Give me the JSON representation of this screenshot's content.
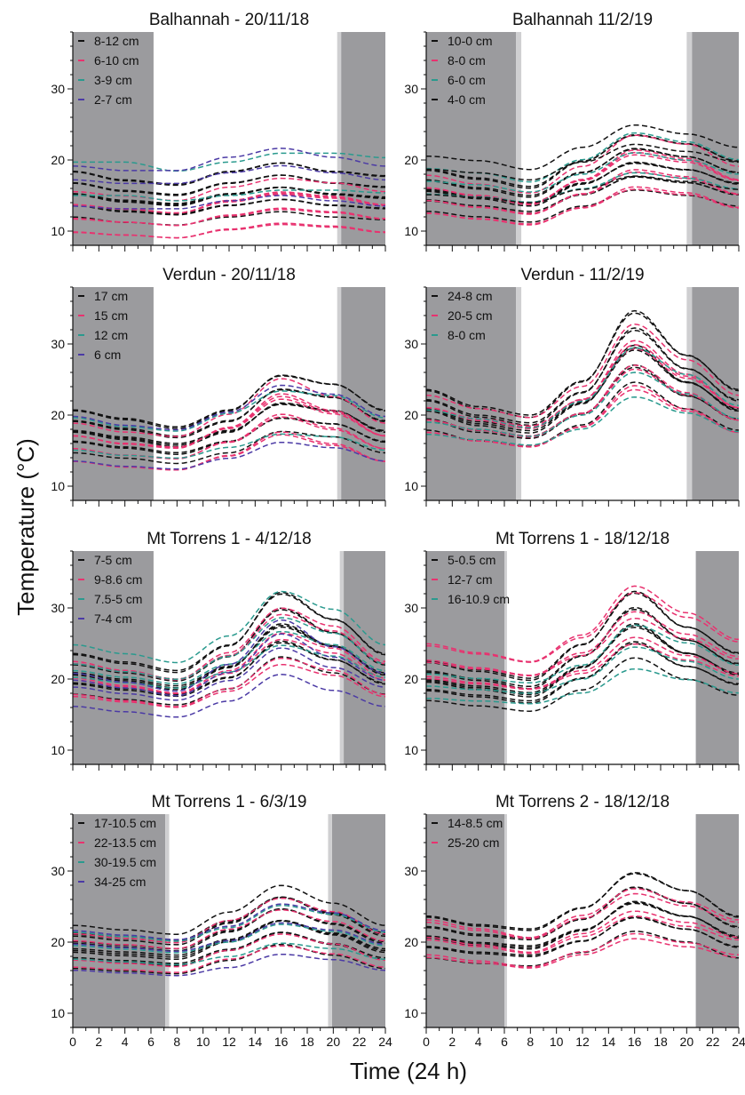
{
  "figure": {
    "ylabel": "Temperature (°C)",
    "xlabel": "Time (24 h)",
    "colors": {
      "night": "#9b9b9e",
      "twilight": "#cfcfd1",
      "black": "#111111",
      "pink": "#e8326f",
      "teal": "#2a9a8e",
      "purple": "#4b3aa5"
    }
  },
  "chart_data": [
    {
      "type": "line",
      "title": "Balhannah - 20/11/18",
      "xlim": [
        0,
        24
      ],
      "ylim": [
        8,
        38
      ],
      "yticks": [
        10,
        20,
        30
      ],
      "xticks": [
        0,
        2,
        4,
        6,
        8,
        10,
        12,
        14,
        16,
        18,
        20,
        22,
        24
      ],
      "night": [
        [
          0,
          6.2
        ],
        [
          20.6,
          24
        ]
      ],
      "twilight": [
        [
          20.3,
          20.6
        ]
      ],
      "legend": [
        "8-12 cm",
        "6-10 cm",
        "3-9 cm",
        "2-7 cm"
      ],
      "series": [
        {
          "name": "8-12 cm",
          "color": "black",
          "x": [
            0,
            4,
            8,
            12,
            16,
            20,
            24
          ],
          "y": [
            15.5,
            14.5,
            14,
            15.5,
            16.5,
            15.5,
            15
          ],
          "lines": 10
        },
        {
          "name": "6-10 cm",
          "color": "pink",
          "x": [
            0,
            4,
            8,
            12,
            16,
            20,
            24
          ],
          "y": [
            12.5,
            12,
            11.5,
            13,
            14,
            13.5,
            12.5
          ],
          "lines": 8
        },
        {
          "name": "3-9 cm",
          "color": "teal",
          "x": [
            0,
            4,
            8,
            12,
            16,
            20,
            24
          ],
          "y": [
            17,
            17,
            16,
            17,
            18,
            18,
            17.5
          ],
          "lines": 2
        },
        {
          "name": "2-7 cm",
          "color": "purple",
          "x": [
            0,
            4,
            8,
            12,
            16,
            20,
            24
          ],
          "y": [
            16.5,
            16,
            16,
            17.5,
            18.5,
            17.5,
            16.5
          ],
          "lines": 3
        }
      ]
    },
    {
      "type": "line",
      "title": "Balhannah 11/2/19",
      "xlim": [
        0,
        24
      ],
      "ylim": [
        8,
        38
      ],
      "yticks": [
        10,
        20,
        30
      ],
      "xticks": [
        0,
        2,
        4,
        6,
        8,
        10,
        12,
        14,
        16,
        18,
        20,
        22,
        24
      ],
      "night": [
        [
          0,
          6.9
        ],
        [
          20.4,
          24
        ]
      ],
      "twilight": [
        [
          6.9,
          7.3
        ],
        [
          20.0,
          20.4
        ]
      ],
      "legend": [
        "10-0 cm",
        "8-0 cm",
        "6-0 cm",
        "4-0 cm"
      ],
      "series": [
        {
          "name": "10-0 cm",
          "color": "black",
          "x": [
            0,
            4,
            8,
            12,
            16,
            20,
            24
          ],
          "y": [
            16,
            15,
            14,
            17,
            20,
            19,
            17
          ],
          "lines": 10
        },
        {
          "name": "8-0 cm",
          "color": "pink",
          "x": [
            0,
            4,
            8,
            12,
            16,
            20,
            24
          ],
          "y": [
            15,
            14,
            13,
            16,
            19.5,
            18.5,
            16
          ],
          "lines": 8
        },
        {
          "name": "6-0 cm",
          "color": "teal",
          "x": [
            0,
            4,
            8,
            12,
            16,
            20,
            24
          ],
          "y": [
            17,
            16.5,
            15.5,
            18,
            21,
            20,
            18
          ],
          "lines": 3
        },
        {
          "name": "4-0 cm",
          "color": "black",
          "x": [
            0,
            4,
            8,
            12,
            16,
            20,
            24
          ],
          "y": [
            18,
            17.5,
            16.5,
            19,
            21.5,
            20.5,
            19
          ],
          "lines": 3
        }
      ]
    },
    {
      "type": "line",
      "title": "Verdun - 20/11/18",
      "xlim": [
        0,
        24
      ],
      "ylim": [
        8,
        38
      ],
      "yticks": [
        10,
        20,
        30
      ],
      "xticks": [
        0,
        2,
        4,
        6,
        8,
        10,
        12,
        14,
        16,
        18,
        20,
        22,
        24
      ],
      "night": [
        [
          0,
          6.2
        ],
        [
          20.6,
          24
        ]
      ],
      "twilight": [
        [
          20.3,
          20.6
        ]
      ],
      "legend": [
        "17 cm",
        "15 cm",
        "12 cm",
        "6 cm"
      ],
      "series": [
        {
          "name": "17 cm",
          "color": "black",
          "x": [
            0,
            4,
            8,
            12,
            16,
            20,
            24
          ],
          "y": [
            18,
            17,
            16,
            18,
            22,
            21,
            18
          ],
          "lines": 10
        },
        {
          "name": "15 cm",
          "color": "pink",
          "x": [
            0,
            4,
            8,
            12,
            16,
            20,
            24
          ],
          "y": [
            16,
            15,
            14.5,
            17,
            21,
            19,
            16
          ],
          "lines": 8
        },
        {
          "name": "12 cm",
          "color": "teal",
          "x": [
            0,
            4,
            8,
            12,
            16,
            20,
            24
          ],
          "y": [
            17,
            16,
            15.5,
            17.5,
            20,
            19.5,
            17
          ],
          "lines": 2
        },
        {
          "name": "6 cm",
          "color": "purple",
          "x": [
            0,
            4,
            8,
            12,
            16,
            20,
            24
          ],
          "y": [
            16.5,
            15.5,
            15,
            17,
            20,
            19,
            16.5
          ],
          "lines": 2
        }
      ]
    },
    {
      "type": "line",
      "title": "Verdun - 11/2/19",
      "xlim": [
        0,
        24
      ],
      "ylim": [
        8,
        38
      ],
      "yticks": [
        10,
        20,
        30
      ],
      "xticks": [
        0,
        2,
        4,
        6,
        8,
        10,
        12,
        14,
        16,
        18,
        20,
        22,
        24
      ],
      "night": [
        [
          0,
          6.9
        ],
        [
          20.4,
          24
        ]
      ],
      "twilight": [
        [
          6.9,
          7.3
        ],
        [
          20.0,
          20.4
        ]
      ],
      "legend": [
        "24-8 cm",
        "20-5 cm",
        "8-0 cm"
      ],
      "series": [
        {
          "name": "24-8 cm",
          "color": "black",
          "x": [
            0,
            4,
            8,
            12,
            16,
            20,
            24
          ],
          "y": [
            21,
            19,
            18,
            22,
            30,
            25,
            21
          ],
          "lines": 10
        },
        {
          "name": "20-5 cm",
          "color": "pink",
          "x": [
            0,
            4,
            8,
            12,
            16,
            20,
            24
          ],
          "y": [
            20,
            18.5,
            17.5,
            21,
            28,
            24,
            20
          ],
          "lines": 8
        },
        {
          "name": "8-0 cm",
          "color": "teal",
          "x": [
            0,
            4,
            8,
            12,
            16,
            20,
            24
          ],
          "y": [
            19,
            18,
            17,
            20,
            26,
            23,
            19.5
          ],
          "lines": 3
        }
      ]
    },
    {
      "type": "line",
      "title": "Mt Torrens 1 - 4/12/18",
      "xlim": [
        0,
        24
      ],
      "ylim": [
        8,
        38
      ],
      "yticks": [
        10,
        20,
        30
      ],
      "xticks": [
        0,
        2,
        4,
        6,
        8,
        10,
        12,
        14,
        16,
        18,
        20,
        22,
        24
      ],
      "night": [
        [
          0,
          6.2
        ],
        [
          20.8,
          24
        ]
      ],
      "twilight": [
        [
          20.5,
          20.8
        ]
      ],
      "legend": [
        "7-5 cm",
        "9-8.6 cm",
        "7.5-5 cm",
        "7-4 cm"
      ],
      "series": [
        {
          "name": "7-5 cm",
          "color": "black",
          "x": [
            0,
            4,
            8,
            12,
            16,
            20,
            24
          ],
          "y": [
            21,
            20,
            19,
            22,
            28,
            25,
            21
          ],
          "lines": 10
        },
        {
          "name": "9-8.6 cm",
          "color": "pink",
          "x": [
            0,
            4,
            8,
            12,
            16,
            20,
            24
          ],
          "y": [
            20,
            19,
            18,
            21,
            26,
            24,
            20
          ],
          "lines": 6
        },
        {
          "name": "7.5-5 cm",
          "color": "teal",
          "x": [
            0,
            4,
            8,
            12,
            16,
            20,
            24
          ],
          "y": [
            22,
            21,
            20,
            23,
            28,
            26,
            22
          ],
          "lines": 4
        },
        {
          "name": "7-4 cm",
          "color": "purple",
          "x": [
            0,
            4,
            8,
            12,
            16,
            20,
            24
          ],
          "y": [
            19,
            18,
            17,
            20,
            25,
            22,
            19
          ],
          "lines": 4
        }
      ]
    },
    {
      "type": "line",
      "title": "Mt Torrens 1 - 18/12/18",
      "xlim": [
        0,
        24
      ],
      "ylim": [
        8,
        38
      ],
      "yticks": [
        10,
        20,
        30
      ],
      "xticks": [
        0,
        2,
        4,
        6,
        8,
        10,
        12,
        14,
        16,
        18,
        20,
        22,
        24
      ],
      "night": [
        [
          0,
          6.0
        ],
        [
          20.7,
          24
        ]
      ],
      "twilight": [
        [
          6.0,
          6.2
        ]
      ],
      "legend": [
        "5-0.5 cm",
        "12-7 cm",
        "16-10.9 cm"
      ],
      "series": [
        {
          "name": "5-0.5 cm",
          "color": "black",
          "x": [
            0,
            4,
            8,
            12,
            16,
            20,
            24
          ],
          "y": [
            20,
            19,
            18,
            22,
            28,
            24,
            21
          ],
          "lines": 10
        },
        {
          "name": "12-7 cm",
          "color": "pink",
          "x": [
            0,
            4,
            8,
            12,
            16,
            20,
            24
          ],
          "y": [
            22.5,
            21.5,
            20.5,
            23.5,
            29,
            26,
            23
          ],
          "lines": 6
        },
        {
          "name": "16-10.9 cm",
          "color": "teal",
          "x": [
            0,
            4,
            8,
            12,
            16,
            20,
            24
          ],
          "y": [
            19,
            18.5,
            18,
            20,
            24.5,
            22.5,
            20
          ],
          "lines": 3
        }
      ]
    },
    {
      "type": "line",
      "title": "Mt Torrens 1 - 6/3/19",
      "xlim": [
        0,
        24
      ],
      "ylim": [
        8,
        38
      ],
      "yticks": [
        10,
        20,
        30
      ],
      "xticks": [
        0,
        2,
        4,
        6,
        8,
        10,
        12,
        14,
        16,
        18,
        20,
        22,
        24
      ],
      "night": [
        [
          0,
          7.1
        ],
        [
          19.9,
          24
        ]
      ],
      "twilight": [
        [
          7.1,
          7.4
        ],
        [
          19.6,
          19.9
        ]
      ],
      "legend": [
        "17-10.5 cm",
        "22-13.5 cm",
        "30-19.5 cm",
        "34-25 cm"
      ],
      "series": [
        {
          "name": "17-10.5 cm",
          "color": "black",
          "x": [
            0,
            4,
            8,
            12,
            16,
            20,
            24
          ],
          "y": [
            19.5,
            19,
            18.5,
            21,
            24,
            22,
            19.5
          ],
          "lines": 12
        },
        {
          "name": "22-13.5 cm",
          "color": "pink",
          "x": [
            0,
            4,
            8,
            12,
            16,
            20,
            24
          ],
          "y": [
            19,
            18.5,
            18,
            20.5,
            23,
            21.5,
            19
          ],
          "lines": 4
        },
        {
          "name": "30-19.5 cm",
          "color": "teal",
          "x": [
            0,
            4,
            8,
            12,
            16,
            20,
            24
          ],
          "y": [
            19.5,
            19,
            18.5,
            20,
            22.5,
            21.5,
            19.5
          ],
          "lines": 3
        },
        {
          "name": "34-25 cm",
          "color": "purple",
          "x": [
            0,
            4,
            8,
            12,
            16,
            20,
            24
          ],
          "y": [
            19,
            18.5,
            18,
            19.5,
            22,
            21,
            19
          ],
          "lines": 3
        }
      ]
    },
    {
      "type": "line",
      "title": "Mt Torrens 2 - 18/12/18",
      "xlim": [
        0,
        24
      ],
      "ylim": [
        8,
        38
      ],
      "yticks": [
        10,
        20,
        30
      ],
      "xticks": [
        0,
        2,
        4,
        6,
        8,
        10,
        12,
        14,
        16,
        18,
        20,
        22,
        24
      ],
      "night": [
        [
          0,
          6.0
        ],
        [
          20.7,
          24
        ]
      ],
      "twilight": [
        [
          6.0,
          6.2
        ]
      ],
      "legend": [
        "14-8.5 cm",
        "25-20 cm"
      ],
      "series": [
        {
          "name": "14-8.5 cm",
          "color": "black",
          "x": [
            0,
            4,
            8,
            12,
            16,
            20,
            24
          ],
          "y": [
            21,
            20,
            19.5,
            22,
            26,
            24,
            21
          ],
          "lines": 10
        },
        {
          "name": "25-20 cm",
          "color": "pink",
          "x": [
            0,
            4,
            8,
            12,
            16,
            20,
            24
          ],
          "y": [
            20.5,
            19.5,
            18.5,
            21,
            24,
            22.5,
            20.5
          ],
          "lines": 6
        }
      ]
    }
  ]
}
